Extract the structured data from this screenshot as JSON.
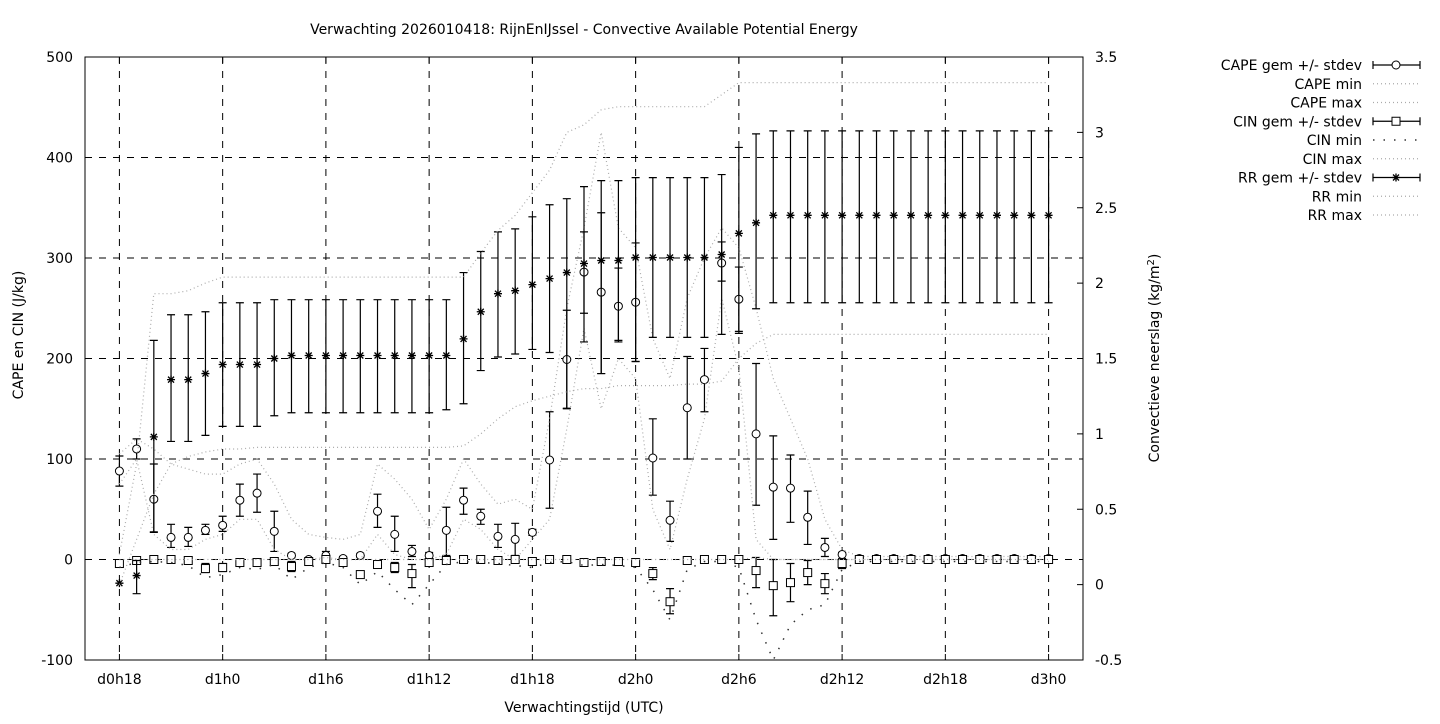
{
  "chart_data": {
    "type": "line",
    "title": "Verwachting 2026010418: RijnEnIJssel - Convective Available Potential Energy",
    "xlabel": "Verwachtingstijd (UTC)",
    "ylabel": "CAPE en CIN (J/kg)",
    "y2label": "Convectieve neerslag (kg/m",
    "y2label_sup": "2",
    "y2label_end": ")",
    "xlim_hours": [
      16,
      74
    ],
    "ylim": [
      -100,
      500
    ],
    "y2lim": [
      -0.5,
      3.5
    ],
    "grid": true,
    "legend_placement": "outside-right",
    "xticks": [
      {
        "hours": 18,
        "label": "d0h18"
      },
      {
        "hours": 24,
        "label": "d1h0"
      },
      {
        "hours": 30,
        "label": "d1h6"
      },
      {
        "hours": 36,
        "label": "d1h12"
      },
      {
        "hours": 42,
        "label": "d1h18"
      },
      {
        "hours": 48,
        "label": "d2h0"
      },
      {
        "hours": 54,
        "label": "d2h6"
      },
      {
        "hours": 60,
        "label": "d2h12"
      },
      {
        "hours": 66,
        "label": "d2h18"
      },
      {
        "hours": 72,
        "label": "d3h0"
      }
    ],
    "yticks": [
      "-100",
      "0",
      "100",
      "200",
      "300",
      "400",
      "500"
    ],
    "y2ticks": [
      "-0.5",
      "0",
      "0.5",
      "1",
      "1.5",
      "2",
      "2.5",
      "3",
      "3.5"
    ],
    "x_hours": [
      18,
      19,
      20,
      21,
      22,
      23,
      24,
      25,
      26,
      27,
      28,
      29,
      30,
      31,
      32,
      33,
      34,
      35,
      36,
      37,
      38,
      39,
      40,
      41,
      42,
      43,
      44,
      45,
      46,
      47,
      48,
      49,
      50,
      51,
      52,
      53,
      54,
      55,
      56,
      57,
      58,
      59,
      60,
      61,
      62,
      63,
      64,
      65,
      66,
      67,
      68,
      69,
      70,
      71,
      72
    ],
    "series": [
      {
        "name": "CAPE gem +/- stdev",
        "axis": "y",
        "style": "errorbar",
        "marker": "circle",
        "values": [
          88,
          110,
          60,
          22,
          22,
          29,
          34,
          59,
          66,
          28,
          4,
          0,
          4,
          1,
          4,
          48,
          25,
          8,
          4,
          29,
          59,
          43,
          23,
          20,
          27,
          99,
          199,
          286,
          266,
          252,
          256,
          101,
          39,
          151,
          179,
          295,
          259,
          125,
          72,
          71,
          42,
          12,
          5,
          1,
          1,
          1,
          1,
          1,
          1,
          1,
          1,
          1,
          1,
          1,
          1
        ],
        "low": [
          73,
          100,
          27,
          12,
          13,
          25,
          28,
          43,
          47,
          8,
          2,
          0,
          0,
          0,
          2,
          32,
          8,
          3,
          1,
          4,
          45,
          35,
          12,
          4,
          24,
          51,
          150,
          245,
          185,
          218,
          197,
          64,
          18,
          100,
          147,
          277,
          225,
          54,
          20,
          37,
          15,
          3,
          1,
          0,
          0,
          0,
          0,
          0,
          0,
          0,
          0,
          0,
          0,
          0,
          0
        ],
        "high": [
          103,
          120,
          95,
          35,
          32,
          35,
          43,
          75,
          85,
          48,
          6,
          1,
          8,
          3,
          6,
          65,
          43,
          14,
          7,
          52,
          71,
          50,
          35,
          36,
          30,
          147,
          248,
          326,
          345,
          290,
          315,
          140,
          58,
          202,
          210,
          316,
          291,
          195,
          123,
          104,
          68,
          21,
          7,
          2,
          2,
          2,
          2,
          2,
          2,
          2,
          2,
          2,
          2,
          2,
          2
        ]
      },
      {
        "name": "CAPE min",
        "axis": "y",
        "style": "dotted-light",
        "values": [
          75,
          100,
          25,
          10,
          10,
          20,
          25,
          40,
          40,
          10,
          0,
          0,
          0,
          0,
          0,
          25,
          5,
          0,
          0,
          5,
          40,
          30,
          10,
          0,
          20,
          40,
          130,
          230,
          150,
          200,
          180,
          50,
          10,
          80,
          140,
          260,
          190,
          20,
          0,
          0,
          0,
          0,
          0,
          0,
          0,
          0,
          0,
          0,
          0,
          0,
          0,
          0,
          0,
          0,
          0
        ]
      },
      {
        "name": "CAPE max",
        "axis": "y",
        "style": "dotted-light",
        "values": [
          105,
          120,
          110,
          95,
          90,
          85,
          85,
          95,
          100,
          75,
          40,
          25,
          22,
          20,
          25,
          95,
          80,
          60,
          30,
          60,
          100,
          75,
          55,
          60,
          50,
          140,
          250,
          330,
          425,
          330,
          310,
          220,
          180,
          260,
          300,
          330,
          310,
          250,
          180,
          140,
          100,
          40,
          10,
          3,
          3,
          3,
          3,
          3,
          3,
          3,
          3,
          3,
          3,
          3,
          3
        ]
      },
      {
        "name": "CIN gem +/- stdev",
        "axis": "y",
        "style": "errorbar",
        "marker": "square",
        "values": [
          -4,
          -1,
          0,
          0,
          -1,
          -9,
          -8,
          -3,
          -3,
          -2,
          -7,
          -2,
          0,
          -3,
          -15,
          -5,
          -8,
          -14,
          -3,
          -1,
          0,
          0,
          -1,
          0,
          -2,
          0,
          0,
          -3,
          -2,
          -2,
          -3,
          -14,
          -42,
          -1,
          0,
          0,
          0,
          -11,
          -26,
          -23,
          -13,
          -24,
          -4,
          0,
          0,
          0,
          0,
          0,
          0,
          0,
          0,
          0,
          0,
          0,
          0
        ],
        "low": [
          -6,
          -3,
          -1,
          -1,
          -3,
          -13,
          -12,
          -5,
          -5,
          -4,
          -12,
          -4,
          -2,
          -5,
          -17,
          -8,
          -13,
          -28,
          -5,
          -3,
          -1,
          -1,
          -3,
          -1,
          -4,
          -1,
          -1,
          -5,
          -4,
          -4,
          -5,
          -20,
          -54,
          -3,
          -1,
          -1,
          -2,
          -28,
          -56,
          -42,
          -25,
          -34,
          -9,
          -1,
          -1,
          -1,
          -1,
          -1,
          -1,
          -1,
          -1,
          -1,
          -1,
          -1,
          -1
        ],
        "high": [
          -2,
          0,
          0,
          0,
          0,
          -4,
          -4,
          -1,
          -1,
          0,
          -2,
          0,
          1,
          -1,
          -13,
          -2,
          -3,
          -5,
          -1,
          0,
          0,
          0,
          0,
          0,
          0,
          0,
          0,
          -1,
          0,
          0,
          -1,
          -8,
          -29,
          0,
          0,
          0,
          0,
          2,
          0,
          -4,
          -1,
          -14,
          -1,
          0,
          0,
          0,
          0,
          0,
          0,
          0,
          0,
          0,
          0,
          0,
          0
        ]
      },
      {
        "name": "CIN min",
        "axis": "y",
        "style": "dotted-sparse",
        "values": [
          -8,
          -3,
          -2,
          -3,
          -6,
          -18,
          -15,
          -8,
          -10,
          -5,
          -20,
          -8,
          -3,
          -8,
          -25,
          -12,
          -30,
          -45,
          -25,
          -5,
          -2,
          -3,
          -4,
          -6,
          -8,
          -3,
          -2,
          -6,
          -5,
          -6,
          -8,
          -30,
          -60,
          -10,
          -2,
          -2,
          -8,
          -60,
          -100,
          -65,
          -50,
          -45,
          -10,
          -2,
          -2,
          -2,
          -2,
          -2,
          -2,
          -2,
          -2,
          -2,
          -2,
          -2,
          -2
        ]
      },
      {
        "name": "CIN max",
        "axis": "y",
        "style": "dotted-light",
        "values": [
          0,
          0,
          0,
          0,
          0,
          0,
          0,
          0,
          0,
          0,
          0,
          0,
          2,
          0,
          0,
          0,
          0,
          0,
          0,
          0,
          0,
          0,
          0,
          0,
          0,
          0,
          0,
          0,
          0,
          0,
          0,
          0,
          0,
          0,
          0,
          0,
          0,
          2,
          0,
          0,
          0,
          0,
          0,
          0,
          0,
          0,
          0,
          0,
          0,
          0,
          0,
          0,
          0,
          0,
          0
        ]
      },
      {
        "name": "RR gem +/- stdev",
        "axis": "y2",
        "style": "errorbar",
        "marker": "star",
        "values": [
          0.01,
          0.06,
          0.98,
          1.36,
          1.36,
          1.4,
          1.46,
          1.46,
          1.46,
          1.5,
          1.52,
          1.52,
          1.52,
          1.52,
          1.52,
          1.52,
          1.52,
          1.52,
          1.52,
          1.52,
          1.63,
          1.81,
          1.93,
          1.95,
          1.99,
          2.03,
          2.07,
          2.13,
          2.15,
          2.15,
          2.17,
          2.17,
          2.17,
          2.17,
          2.17,
          2.19,
          2.33,
          2.4,
          2.45,
          2.45,
          2.45,
          2.45,
          2.45,
          2.45,
          2.45,
          2.45,
          2.45,
          2.45,
          2.45,
          2.45,
          2.45,
          2.45,
          2.45,
          2.45,
          2.45
        ],
        "low": [
          0.01,
          -0.06,
          0.35,
          0.95,
          0.95,
          0.99,
          1.05,
          1.05,
          1.05,
          1.12,
          1.14,
          1.14,
          1.14,
          1.14,
          1.14,
          1.14,
          1.14,
          1.14,
          1.14,
          1.16,
          1.2,
          1.42,
          1.51,
          1.53,
          1.56,
          1.54,
          1.17,
          1.61,
          1.4,
          1.61,
          1.48,
          1.64,
          1.64,
          1.64,
          1.64,
          1.66,
          1.68,
          1.83,
          1.87,
          1.87,
          1.87,
          1.87,
          1.87,
          1.87,
          1.87,
          1.87,
          1.87,
          1.87,
          1.87,
          1.87,
          1.87,
          1.87,
          1.87,
          1.87,
          1.87
        ],
        "high": [
          0.01,
          0.16,
          1.62,
          1.79,
          1.79,
          1.81,
          1.87,
          1.87,
          1.87,
          1.89,
          1.89,
          1.89,
          1.89,
          1.89,
          1.89,
          1.89,
          1.89,
          1.89,
          1.89,
          1.89,
          2.07,
          2.21,
          2.34,
          2.36,
          2.44,
          2.52,
          2.56,
          2.64,
          2.68,
          2.68,
          2.7,
          2.7,
          2.7,
          2.7,
          2.7,
          2.72,
          2.9,
          2.99,
          3.01,
          3.01,
          3.01,
          3.01,
          3.01,
          3.01,
          3.01,
          3.01,
          3.01,
          3.01,
          3.01,
          3.01,
          3.01,
          3.01,
          3.01,
          3.01,
          3.01
        ]
      },
      {
        "name": "RR min",
        "axis": "y2",
        "style": "dotted-light",
        "values": [
          0.0,
          0.3,
          0.6,
          0.8,
          0.85,
          0.88,
          0.9,
          0.9,
          0.91,
          0.91,
          0.91,
          0.91,
          0.91,
          0.91,
          0.91,
          0.91,
          0.91,
          0.91,
          0.91,
          0.91,
          0.92,
          1.0,
          1.1,
          1.18,
          1.22,
          1.25,
          1.28,
          1.3,
          1.3,
          1.32,
          1.32,
          1.32,
          1.32,
          1.33,
          1.33,
          1.35,
          1.5,
          1.6,
          1.66,
          1.66,
          1.66,
          1.66,
          1.66,
          1.66,
          1.66,
          1.66,
          1.66,
          1.66,
          1.66,
          1.66,
          1.66,
          1.66,
          1.66,
          1.66,
          1.66
        ]
      },
      {
        "name": "RR max",
        "axis": "y2",
        "style": "dotted-light",
        "values": [
          0.2,
          0.8,
          1.93,
          1.93,
          1.95,
          2.0,
          2.04,
          2.04,
          2.04,
          2.04,
          2.04,
          2.04,
          2.04,
          2.04,
          2.04,
          2.04,
          2.04,
          2.04,
          2.04,
          2.04,
          2.04,
          2.2,
          2.35,
          2.45,
          2.6,
          2.75,
          3.0,
          3.05,
          3.15,
          3.17,
          3.17,
          3.17,
          3.17,
          3.17,
          3.17,
          3.25,
          3.33,
          3.33,
          3.33,
          3.33,
          3.33,
          3.33,
          3.33,
          3.33,
          3.33,
          3.33,
          3.33,
          3.33,
          3.33,
          3.33,
          3.33,
          3.33,
          3.33,
          3.33,
          3.33
        ]
      }
    ]
  }
}
